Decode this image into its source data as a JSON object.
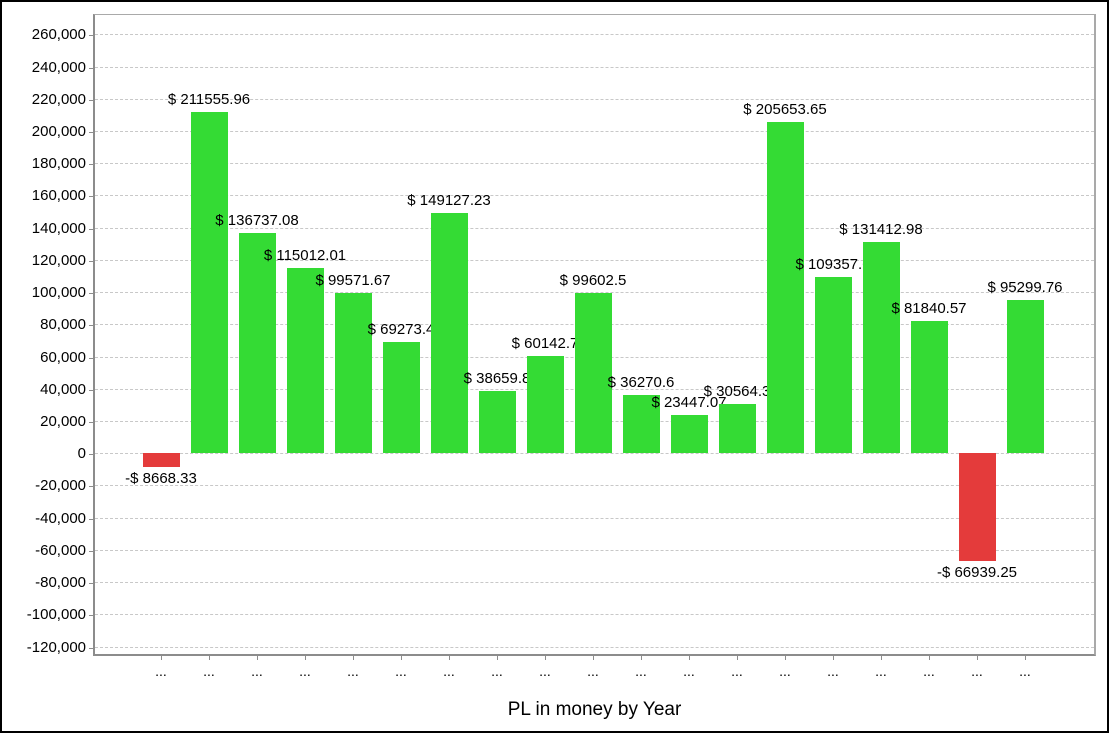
{
  "chart_data": {
    "type": "bar",
    "title": "PL in money by Year",
    "title_position": "bottom-center",
    "xlabel": "",
    "ylabel": "",
    "ylim": [
      -124000,
      272000
    ],
    "grid": "horizontal-dashed",
    "legend": "none",
    "colors": {
      "positive_bar": "#34db34",
      "negative_bar": "#e43b3b",
      "gridline": "#c8c8c8",
      "axis": "#8c8c8c",
      "label_text": "#000000"
    },
    "yticks": [
      {
        "value": 260000,
        "label": "260,000"
      },
      {
        "value": 240000,
        "label": "240,000"
      },
      {
        "value": 220000,
        "label": "220,000"
      },
      {
        "value": 200000,
        "label": "200,000"
      },
      {
        "value": 180000,
        "label": "180,000"
      },
      {
        "value": 160000,
        "label": "160,000"
      },
      {
        "value": 140000,
        "label": "140,000"
      },
      {
        "value": 120000,
        "label": "120,000"
      },
      {
        "value": 100000,
        "label": "100,000"
      },
      {
        "value": 80000,
        "label": "80,000"
      },
      {
        "value": 60000,
        "label": "60,000"
      },
      {
        "value": 40000,
        "label": "40,000"
      },
      {
        "value": 20000,
        "label": "20,000"
      },
      {
        "value": 0,
        "label": "0"
      },
      {
        "value": -20000,
        "label": "-20,000"
      },
      {
        "value": -40000,
        "label": "-40,000"
      },
      {
        "value": -60000,
        "label": "-60,000"
      },
      {
        "value": -80000,
        "label": "-80,000"
      },
      {
        "value": -100000,
        "label": "-100,000"
      },
      {
        "value": -120000,
        "label": "-120,000"
      }
    ],
    "categories": [
      "...",
      "...",
      "...",
      "...",
      "...",
      "...",
      "...",
      "...",
      "...",
      "...",
      "...",
      "...",
      "...",
      "...",
      "...",
      "...",
      "...",
      "...",
      "..."
    ],
    "bars": [
      {
        "value": -8668.33,
        "label": "-$ 8668.33"
      },
      {
        "value": 211555.96,
        "label": "$ 211555.96"
      },
      {
        "value": 136737.08,
        "label": "$ 136737.08"
      },
      {
        "value": 115012.01,
        "label": "$ 115012.01"
      },
      {
        "value": 99571.67,
        "label": "$ 99571.67"
      },
      {
        "value": 69273.4,
        "label": "$ 69273.4"
      },
      {
        "value": 149127.23,
        "label": "$ 149127.23"
      },
      {
        "value": 38659.8,
        "label": "$ 38659.8"
      },
      {
        "value": 60142.7,
        "label": "$ 60142.7"
      },
      {
        "value": 99602.5,
        "label": "$ 99602.5"
      },
      {
        "value": 36270.6,
        "label": "$ 36270.6"
      },
      {
        "value": 23447.07,
        "label": "$ 23447.07"
      },
      {
        "value": 30564.3,
        "label": "$ 30564.3"
      },
      {
        "value": 205653.65,
        "label": "$ 205653.65"
      },
      {
        "value": 109357.6,
        "label": "$ 109357.6"
      },
      {
        "value": 131412.98,
        "label": "$ 131412.98"
      },
      {
        "value": 81840.57,
        "label": "$ 81840.57"
      },
      {
        "value": -66939.25,
        "label": "-$ 66939.25"
      },
      {
        "value": 95299.76,
        "label": "$ 95299.76"
      }
    ]
  }
}
